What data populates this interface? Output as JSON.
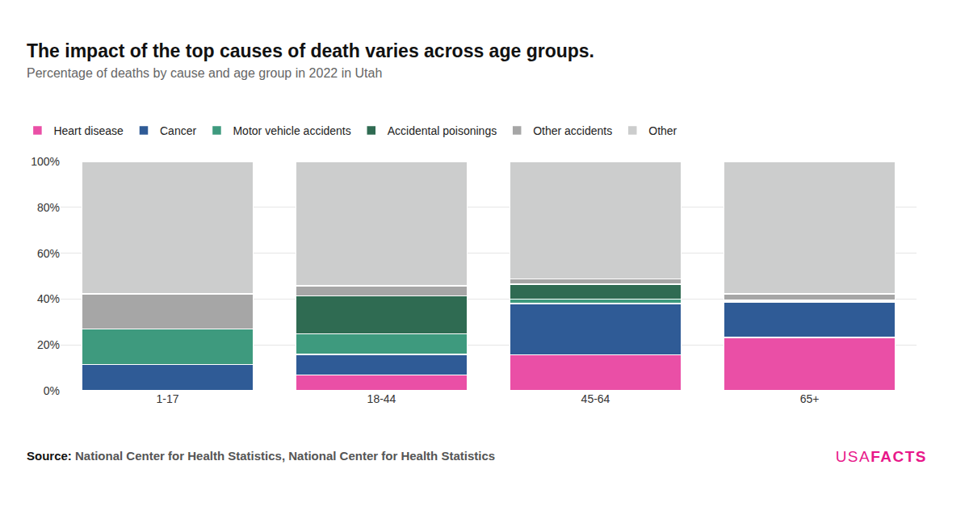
{
  "chart_data": {
    "type": "bar",
    "stacked": true,
    "title": "The impact of the top causes of death varies across age groups.",
    "subtitle": "Percentage of deaths by cause and age group in 2022 in Utah",
    "source_label": "Source:",
    "source": "National Center for Health Statistics, National Center for Health Statistics",
    "logo": [
      "USA",
      "FACTS"
    ],
    "categories": [
      "1-17",
      "18-44",
      "45-64",
      "65+"
    ],
    "series": [
      {
        "name": "Heart disease",
        "color": "#ea4fa6",
        "values": [
          0,
          6.8,
          15.6,
          23.2
        ]
      },
      {
        "name": "Cancer",
        "color": "#2f5b96",
        "values": [
          11.5,
          9,
          22.4,
          15.6
        ]
      },
      {
        "name": "Motor vehicle accidents",
        "color": "#3e9a7e",
        "values": [
          15.5,
          9,
          2,
          0.6
        ]
      },
      {
        "name": "Accidental poisonings",
        "color": "#2f6b52",
        "values": [
          0,
          16.5,
          6.4,
          0.2
        ]
      },
      {
        "name": "Other accidents",
        "color": "#a6a6a6",
        "values": [
          15.3,
          4.4,
          2.4,
          2.7
        ]
      },
      {
        "name": "Other",
        "color": "#cccdcd",
        "values": [
          57.7,
          54.3,
          51.2,
          57.7
        ]
      }
    ],
    "ylim": [
      0,
      100
    ],
    "yticks": [
      {
        "value": 0,
        "label": "0%"
      },
      {
        "value": 20,
        "label": "20%"
      },
      {
        "value": 40,
        "label": "40%"
      },
      {
        "value": 60,
        "label": "60%"
      },
      {
        "value": 80,
        "label": "80%"
      },
      {
        "value": 100,
        "label": "100%"
      }
    ],
    "grid": true,
    "legend": "top-left"
  }
}
